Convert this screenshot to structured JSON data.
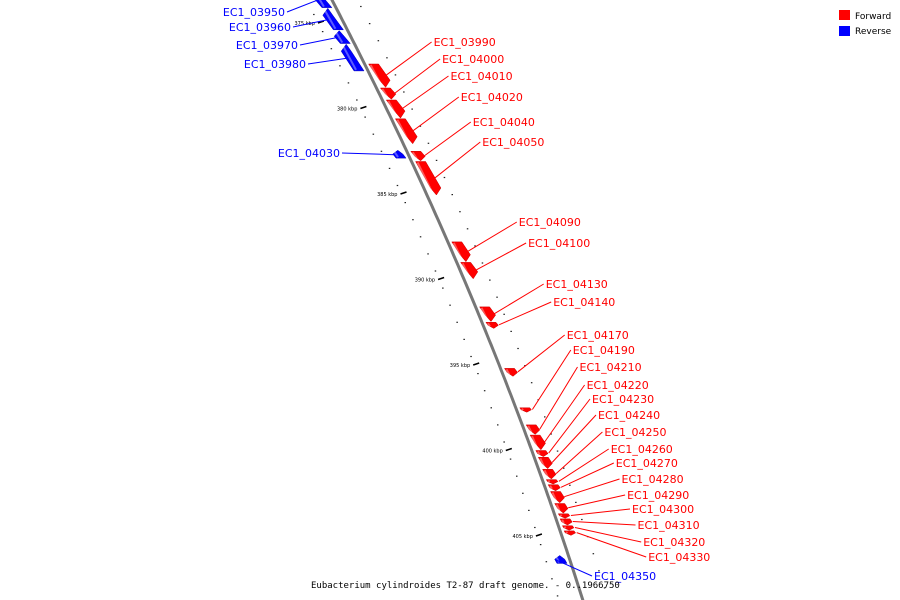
{
  "caption": "Eubacterium cylindroides T2-87 draft genome. - 0..1966750",
  "colors": {
    "forward": "#ff0000",
    "reverse": "#0000ff",
    "backbone": "#888888"
  },
  "legend": [
    {
      "label": "Forward",
      "strand": "forward"
    },
    {
      "label": "Reverse",
      "strand": "reverse"
    }
  ],
  "ticks": [
    {
      "label": "375 kbp",
      "pos": 375
    },
    {
      "label": "380 kbp",
      "pos": 380
    },
    {
      "label": "385 kbp",
      "pos": 385
    },
    {
      "label": "390 kbp",
      "pos": 390
    },
    {
      "label": "395 kbp",
      "pos": 395
    },
    {
      "label": "400 kbp",
      "pos": 400
    },
    {
      "label": "405 kbp",
      "pos": 405
    }
  ],
  "genes": [
    {
      "id": "EC1_03950",
      "strand": "reverse",
      "start": 373.2,
      "end": 374.1
    },
    {
      "id": "EC1_03960",
      "strand": "reverse",
      "start": 374.2,
      "end": 375.4
    },
    {
      "id": "EC1_03970",
      "strand": "reverse",
      "start": 375.5,
      "end": 376.2
    },
    {
      "id": "EC1_03980",
      "strand": "reverse",
      "start": 376.3,
      "end": 377.8
    },
    {
      "id": "EC1_03990",
      "strand": "forward",
      "start": 377.4,
      "end": 378.7
    },
    {
      "id": "EC1_04000",
      "strand": "forward",
      "start": 378.8,
      "end": 379.4
    },
    {
      "id": "EC1_04010",
      "strand": "forward",
      "start": 379.5,
      "end": 380.5
    },
    {
      "id": "EC1_04020",
      "strand": "forward",
      "start": 380.6,
      "end": 382.0
    },
    {
      "id": "EC1_04030",
      "strand": "reverse",
      "start": 382.5,
      "end": 382.9
    },
    {
      "id": "EC1_04040",
      "strand": "forward",
      "start": 382.5,
      "end": 383.0
    },
    {
      "id": "EC1_04050",
      "strand": "forward",
      "start": 383.1,
      "end": 385.0
    },
    {
      "id": "EC1_04090",
      "strand": "forward",
      "start": 387.8,
      "end": 388.9
    },
    {
      "id": "EC1_04100",
      "strand": "forward",
      "start": 389.0,
      "end": 389.9
    },
    {
      "id": "EC1_04130",
      "strand": "forward",
      "start": 391.6,
      "end": 392.4
    },
    {
      "id": "EC1_04140",
      "strand": "forward",
      "start": 392.5,
      "end": 392.8
    },
    {
      "id": "EC1_04170",
      "strand": "forward",
      "start": 395.2,
      "end": 395.6
    },
    {
      "id": "EC1_04190",
      "strand": "forward",
      "start": 397.5,
      "end": 397.7
    },
    {
      "id": "EC1_04210",
      "strand": "forward",
      "start": 398.5,
      "end": 399.0
    },
    {
      "id": "EC1_04220",
      "strand": "forward",
      "start": 399.1,
      "end": 399.9
    },
    {
      "id": "EC1_04230",
      "strand": "forward",
      "start": 400.0,
      "end": 400.3
    },
    {
      "id": "EC1_04240",
      "strand": "forward",
      "start": 400.4,
      "end": 401.0
    },
    {
      "id": "EC1_04250",
      "strand": "forward",
      "start": 401.1,
      "end": 401.6
    },
    {
      "id": "EC1_04260",
      "strand": "forward",
      "start": 401.7,
      "end": 401.9
    },
    {
      "id": "EC1_04270",
      "strand": "forward",
      "start": 402.0,
      "end": 402.3
    },
    {
      "id": "EC1_04280",
      "strand": "forward",
      "start": 402.4,
      "end": 403.0
    },
    {
      "id": "EC1_04290",
      "strand": "forward",
      "start": 403.1,
      "end": 403.6
    },
    {
      "id": "EC1_04300",
      "strand": "forward",
      "start": 403.7,
      "end": 403.9
    },
    {
      "id": "EC1_04310",
      "strand": "forward",
      "start": 404.0,
      "end": 404.3
    },
    {
      "id": "EC1_04320",
      "strand": "forward",
      "start": 404.4,
      "end": 404.6
    },
    {
      "id": "EC1_04330",
      "strand": "forward",
      "start": 404.7,
      "end": 404.9
    },
    {
      "id": "EC1_04350",
      "strand": "reverse",
      "start": 406.2,
      "end": 406.6
    }
  ]
}
